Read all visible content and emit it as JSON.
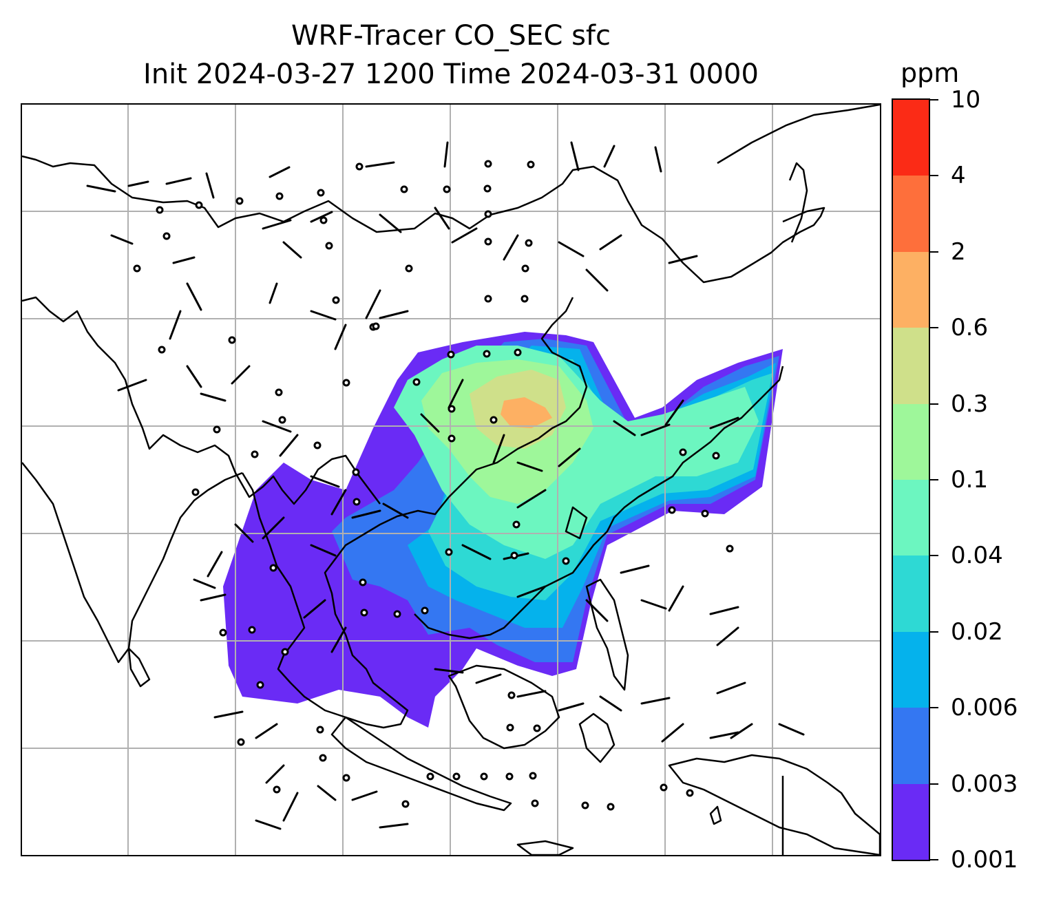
{
  "title": {
    "line1": "WRF-Tracer CO_SEC sfc",
    "line2": "Init 2024-03-27 1200 Time 2024-03-31 0000"
  },
  "colorbar": {
    "units": "ppm",
    "levels": [
      "0.001",
      "0.003",
      "0.006",
      "0.02",
      "0.04",
      "0.1",
      "0.3",
      "0.6",
      "2",
      "4",
      "10"
    ],
    "colors": [
      "#6a2bf5",
      "#3477f2",
      "#05b2ec",
      "#2ed9d4",
      "#6cf6c0",
      "#9ef79a",
      "#cfe08a",
      "#fdb063",
      "#fe6f3b",
      "#fb2b16"
    ]
  },
  "map": {
    "gridlines": true,
    "coastline_color": "#000000",
    "grid_color": "#b0b0b0",
    "overlay": "wind-barbs"
  }
}
